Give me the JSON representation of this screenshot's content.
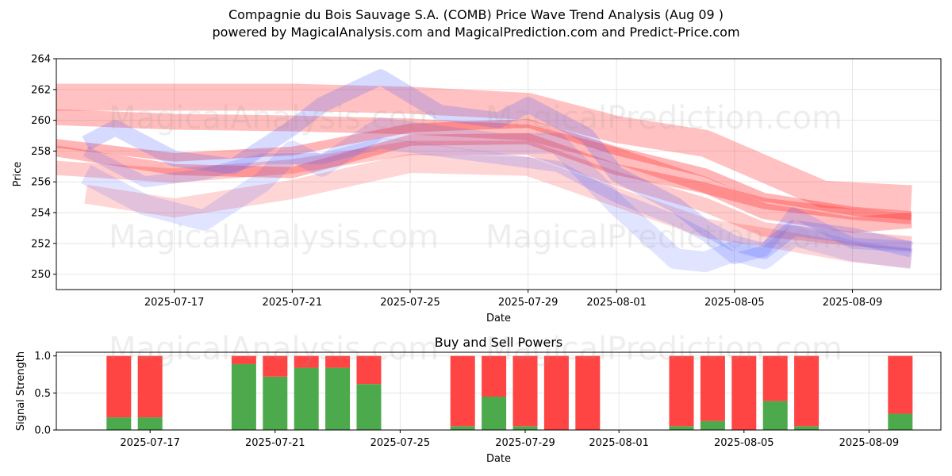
{
  "title": "Compagnie du Bois Sauvage S.A. (COMB) Price Wave Trend Analysis (Aug 09 )",
  "subtitle": "powered by MagicalAnalysis.com and MagicalPrediction.com and Predict-Price.com",
  "watermarks": [
    "MagicalAnalysis.com",
    "MagicalPrediction.com"
  ],
  "colors": {
    "sell": "#ff4444",
    "buy": "#4caa4c",
    "red_band": "#ff3333",
    "blue_band": "#4455ff",
    "grid": "#e6e6e6"
  },
  "chart_data": [
    {
      "type": "area",
      "xlabel": "Date",
      "ylabel": "Price",
      "xlim": [
        "2025-07-13",
        "2025-08-12"
      ],
      "ylim": [
        249,
        264
      ],
      "yticks": [
        250,
        252,
        254,
        256,
        258,
        260,
        262,
        264
      ],
      "xticks": [
        "2025-07-17",
        "2025-07-21",
        "2025-07-25",
        "2025-07-29",
        "2025-08-01",
        "2025-08-05",
        "2025-08-09"
      ],
      "grid": true,
      "series": [
        {
          "color": "red",
          "x": [
            "2025-07-13",
            "2025-07-21",
            "2025-07-25",
            "2025-07-29",
            "2025-08-01",
            "2025-08-04",
            "2025-08-08",
            "2025-08-11"
          ],
          "y": [
            261.5,
            261.5,
            261.3,
            260.9,
            259.4,
            258.5,
            255.2,
            254.9
          ]
        },
        {
          "color": "red",
          "x": [
            "2025-07-13",
            "2025-07-17",
            "2025-07-21",
            "2025-07-25",
            "2025-07-29",
            "2025-08-01",
            "2025-08-04",
            "2025-08-06",
            "2025-08-09",
            "2025-08-11"
          ],
          "y": [
            260.2,
            259.9,
            259.8,
            259.6,
            259.2,
            257.7,
            255.8,
            254.1,
            253.2,
            253.5
          ]
        },
        {
          "color": "red",
          "x": [
            "2025-07-13",
            "2025-07-17",
            "2025-07-21",
            "2025-07-25",
            "2025-07-29",
            "2025-08-01",
            "2025-08-04",
            "2025-08-06",
            "2025-08-09",
            "2025-08-11"
          ],
          "y": [
            258.0,
            256.8,
            256.6,
            258.7,
            258.8,
            256.8,
            255.6,
            254.6,
            253.9,
            253.6
          ]
        },
        {
          "color": "red",
          "x": [
            "2025-07-13",
            "2025-07-17",
            "2025-07-21",
            "2025-07-25",
            "2025-07-29",
            "2025-08-01",
            "2025-08-04",
            "2025-08-06",
            "2025-08-09",
            "2025-08-11"
          ],
          "y": [
            258.5,
            257.6,
            258.0,
            259.5,
            259.8,
            258.0,
            256.6,
            255.0,
            254.1,
            253.8
          ]
        },
        {
          "color": "red",
          "x": [
            "2025-07-13",
            "2025-07-17",
            "2025-07-21",
            "2025-07-25",
            "2025-07-29",
            "2025-08-01",
            "2025-08-04",
            "2025-08-06",
            "2025-08-09",
            "2025-08-11"
          ],
          "y": [
            256.9,
            256.4,
            257.0,
            258.2,
            258.2,
            256.2,
            254.5,
            252.9,
            252.3,
            252.0
          ]
        },
        {
          "color": "red",
          "x": [
            "2025-07-14",
            "2025-07-17",
            "2025-07-21",
            "2025-07-25",
            "2025-07-29",
            "2025-08-01",
            "2025-08-04",
            "2025-08-06",
            "2025-08-09",
            "2025-08-11"
          ],
          "y": [
            255.2,
            254.3,
            255.5,
            257.2,
            257.0,
            255.0,
            253.0,
            252.4,
            251.4,
            251.0
          ]
        },
        {
          "color": "blue",
          "x": [
            "2025-07-14",
            "2025-07-15",
            "2025-07-17",
            "2025-07-19",
            "2025-07-21",
            "2025-07-22",
            "2025-07-24",
            "2025-07-26",
            "2025-07-28",
            "2025-07-29",
            "2025-07-31",
            "2025-08-01",
            "2025-08-03",
            "2025-08-04",
            "2025-08-05",
            "2025-08-06",
            "2025-08-07",
            "2025-08-09",
            "2025-08-11"
          ],
          "y": [
            258.5,
            259.5,
            257.5,
            257.0,
            259.5,
            261.0,
            262.8,
            260.5,
            260.0,
            261.0,
            259.0,
            256.5,
            254.5,
            253.0,
            252.0,
            251.5,
            253.0,
            252.5,
            251.6
          ]
        },
        {
          "color": "blue",
          "x": [
            "2025-07-14",
            "2025-07-16",
            "2025-07-18",
            "2025-07-20",
            "2025-07-21",
            "2025-07-22",
            "2025-07-24",
            "2025-07-26",
            "2025-07-28",
            "2025-07-30",
            "2025-08-01",
            "2025-08-03",
            "2025-08-04",
            "2025-08-05",
            "2025-08-06",
            "2025-08-07",
            "2025-08-09",
            "2025-08-11"
          ],
          "y": [
            256.5,
            254.5,
            253.5,
            256.0,
            258.0,
            257.0,
            259.5,
            259.0,
            258.5,
            258.5,
            254.5,
            251.0,
            250.8,
            251.5,
            251.0,
            252.5,
            251.5,
            251.0
          ]
        },
        {
          "color": "blue",
          "x": [
            "2025-07-14",
            "2025-07-16",
            "2025-07-18",
            "2025-07-20",
            "2025-07-22",
            "2025-07-24",
            "2025-07-26",
            "2025-07-28",
            "2025-07-30",
            "2025-08-01",
            "2025-08-03",
            "2025-08-04",
            "2025-08-05",
            "2025-08-06",
            "2025-08-07",
            "2025-08-09",
            "2025-08-11"
          ],
          "y": [
            258.0,
            256.0,
            256.5,
            257.5,
            257.5,
            258.5,
            258.0,
            257.5,
            257.0,
            255.0,
            253.5,
            252.5,
            251.0,
            251.5,
            254.0,
            252.0,
            251.8
          ]
        }
      ]
    },
    {
      "type": "bar",
      "title": "Buy and Sell Powers",
      "xlabel": "Date",
      "ylabel": "Signal Strength",
      "ylim": [
        0,
        1.05
      ],
      "yticks": [
        "0.0",
        "0.5",
        "1.0"
      ],
      "xticks": [
        "2025-07-17",
        "2025-07-21",
        "2025-07-25",
        "2025-07-29",
        "2025-08-01",
        "2025-08-05",
        "2025-08-09"
      ],
      "categories": [
        "2025-07-16",
        "2025-07-17",
        "2025-07-20",
        "2025-07-21",
        "2025-07-22",
        "2025-07-23",
        "2025-07-24",
        "2025-07-27",
        "2025-07-28",
        "2025-07-29",
        "2025-07-30",
        "2025-07-31",
        "2025-08-03",
        "2025-08-04",
        "2025-08-05",
        "2025-08-06",
        "2025-08-07",
        "2025-08-10"
      ],
      "series": [
        {
          "name": "Buy",
          "values": [
            0.17,
            0.17,
            0.89,
            0.72,
            0.84,
            0.84,
            0.62,
            0.05,
            0.45,
            0.05,
            0.0,
            0.0,
            0.05,
            0.12,
            0.0,
            0.39,
            0.05,
            0.22
          ]
        },
        {
          "name": "Sell",
          "values": [
            0.83,
            0.83,
            0.11,
            0.28,
            0.16,
            0.16,
            0.38,
            0.95,
            0.55,
            0.95,
            1.0,
            1.0,
            0.95,
            0.88,
            1.0,
            0.61,
            0.95,
            0.78
          ]
        }
      ]
    }
  ]
}
